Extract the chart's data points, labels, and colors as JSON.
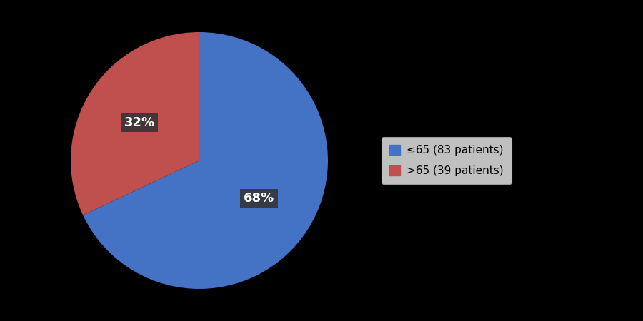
{
  "values": [
    68,
    32
  ],
  "labels": [
    "≤65 (83 patients)",
    ">65 (39 patients)"
  ],
  "colors": [
    "#4472C4",
    "#C0504D"
  ],
  "pct_labels": [
    "68%",
    "32%"
  ],
  "background_color": "#000000",
  "legend_bg": "#F2F2F2",
  "legend_edge": "#AAAAAA",
  "label_box_color": "#333333",
  "label_text_color": "#ffffff",
  "label_fontsize": 13,
  "legend_fontsize": 11,
  "startangle": 90
}
